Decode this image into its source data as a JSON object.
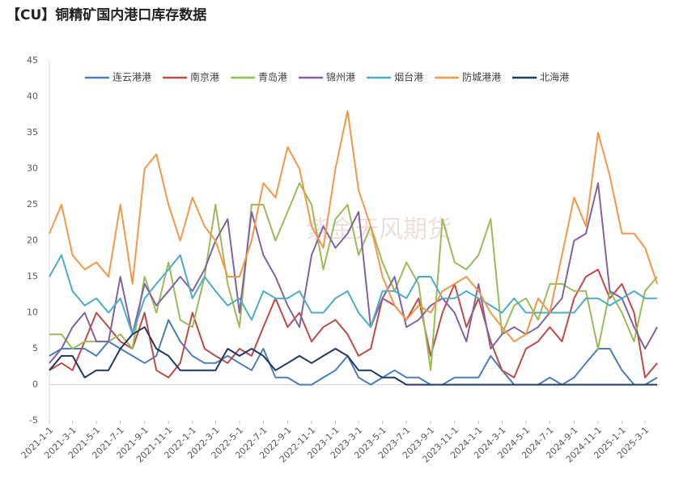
{
  "chart_data": {
    "type": "line",
    "title": "【CU】铜精矿国内港口库存数据",
    "watermark": "紫金天风期货",
    "x": [
      "2021-1-1",
      "2021-2-1",
      "2021-3-1",
      "2021-4-1",
      "2021-5-1",
      "2021-6-1",
      "2021-7-1",
      "2021-8-1",
      "2021-9-1",
      "2021-10-1",
      "2021-11-1",
      "2021-12-1",
      "2022-1-1",
      "2022-2-1",
      "2022-3-1",
      "2022-4-1",
      "2022-5-1",
      "2022-6-1",
      "2022-7-1",
      "2022-8-1",
      "2022-9-1",
      "2022-10-1",
      "2022-11-1",
      "2022-12-1",
      "2023-1-1",
      "2023-2-1",
      "2023-3-1",
      "2023-4-1",
      "2023-5-1",
      "2023-6-1",
      "2023-7-1",
      "2023-8-1",
      "2023-9-1",
      "2023-10-1",
      "2023-11-1",
      "2023-12-1",
      "2024-1-1",
      "2024-2-1",
      "2024-3-1",
      "2024-4-1",
      "2024-5-1",
      "2024-6-1",
      "2024-7-1",
      "2024-8-1",
      "2024-9-1",
      "2024-10-1",
      "2024-11-1",
      "2024-12-1",
      "2025-1-1",
      "2025-2-1",
      "2025-3-1",
      "2025-4-1"
    ],
    "series": [
      {
        "name": "连云港港",
        "color": "#4a7ebb",
        "values": [
          4,
          5,
          5,
          5,
          4,
          6,
          5,
          4,
          3,
          4,
          9,
          6,
          4,
          3,
          3,
          4,
          3,
          2,
          5,
          1,
          1,
          0,
          0,
          1,
          2,
          4,
          1,
          0,
          1,
          2,
          1,
          1,
          0,
          0,
          1,
          1,
          1,
          4,
          2,
          0,
          0,
          0,
          1,
          0,
          1,
          3,
          5,
          5,
          2,
          0,
          0,
          1
        ]
      },
      {
        "name": "南京港",
        "color": "#be4b48",
        "values": [
          2,
          3,
          2,
          6,
          10,
          8,
          6,
          5,
          10,
          2,
          1,
          3,
          10,
          5,
          4,
          3,
          5,
          4,
          8,
          12,
          8,
          10,
          6,
          8,
          9,
          7,
          4,
          5,
          12,
          11,
          9,
          12,
          4,
          10,
          14,
          8,
          12,
          6,
          2,
          1,
          5,
          6,
          8,
          6,
          12,
          15,
          16,
          12,
          14,
          10,
          1,
          3
        ]
      },
      {
        "name": "青岛港",
        "color": "#9bbb59",
        "values": [
          7,
          7,
          5,
          6,
          6,
          6,
          7,
          5,
          15,
          10,
          17,
          9,
          8,
          15,
          25,
          14,
          8,
          25,
          25,
          20,
          24,
          28,
          25,
          16,
          23,
          25,
          18,
          22,
          17,
          13,
          17,
          14,
          2,
          23,
          17,
          16,
          18,
          23,
          7,
          11,
          12,
          9,
          14,
          14,
          13,
          13,
          5,
          13,
          10,
          6,
          13,
          15
        ]
      },
      {
        "name": "锦州港",
        "color": "#8064a2",
        "values": [
          3,
          5,
          8,
          10,
          6,
          6,
          15,
          7,
          14,
          11,
          13,
          15,
          13,
          16,
          20,
          23,
          10,
          24,
          18,
          15,
          11,
          8,
          18,
          22,
          19,
          21,
          24,
          8,
          12,
          15,
          8,
          9,
          11,
          12,
          10,
          6,
          14,
          5,
          7,
          8,
          7,
          8,
          10,
          12,
          20,
          21,
          28,
          13,
          12,
          8,
          5,
          8
        ]
      },
      {
        "name": "烟台港",
        "color": "#4bacc6",
        "values": [
          15,
          18,
          13,
          11,
          12,
          10,
          12,
          7,
          12,
          14,
          16,
          18,
          12,
          15,
          13,
          11,
          12,
          9,
          13,
          12,
          12,
          13,
          10,
          10,
          12,
          13,
          10,
          8,
          13,
          13,
          12,
          15,
          15,
          12,
          12,
          13,
          12,
          11,
          10,
          12,
          10,
          10,
          10,
          10,
          10,
          12,
          12,
          11,
          12,
          13,
          12,
          12
        ]
      },
      {
        "name": "防城港港",
        "color": "#f79646",
        "values": [
          21,
          25,
          18,
          16,
          17,
          15,
          25,
          14,
          30,
          32,
          25,
          20,
          26,
          22,
          20,
          15,
          15,
          20,
          28,
          26,
          33,
          30,
          22,
          19,
          30,
          38,
          27,
          22,
          15,
          11,
          9,
          11,
          10,
          13,
          14,
          15,
          13,
          10,
          8,
          6,
          7,
          12,
          10,
          18,
          26,
          22,
          35,
          29,
          21,
          21,
          19,
          14
        ]
      },
      {
        "name": "北海港",
        "color": "#1f3864",
        "values": [
          2,
          4,
          4,
          1,
          2,
          2,
          5,
          7,
          8,
          5,
          4,
          2,
          2,
          2,
          2,
          5,
          4,
          5,
          4,
          2,
          3,
          4,
          3,
          4,
          5,
          4,
          2,
          2,
          1,
          1,
          0,
          0,
          0,
          0,
          0,
          0,
          0,
          0,
          0,
          0,
          0,
          0,
          0,
          0,
          0,
          0,
          0,
          0,
          0,
          0,
          0,
          0
        ]
      }
    ],
    "xlim": [
      "2021-1-1",
      "2025-4-7"
    ],
    "xticks": [
      "2021-1-1",
      "2021-3-1",
      "2021-5-1",
      "2021-7-1",
      "2021-9-1",
      "2021-11-1",
      "2022-1-1",
      "2022-3-1",
      "2022-5-1",
      "2022-7-1",
      "2022-9-1",
      "2022-11-1",
      "2023-1-1",
      "2023-3-1",
      "2023-5-1",
      "2023-7-1",
      "2023-9-1",
      "2023-11-1",
      "2024-1-1",
      "2024-3-1",
      "2024-5-1",
      "2024-7-1",
      "2024-9-1",
      "2024-11-1",
      "2025-1-1",
      "2025-3-1"
    ],
    "ylim": [
      -5,
      45
    ],
    "yticks": [
      -5,
      0,
      5,
      10,
      15,
      20,
      25,
      30,
      35,
      40,
      45
    ],
    "legend": "top"
  }
}
